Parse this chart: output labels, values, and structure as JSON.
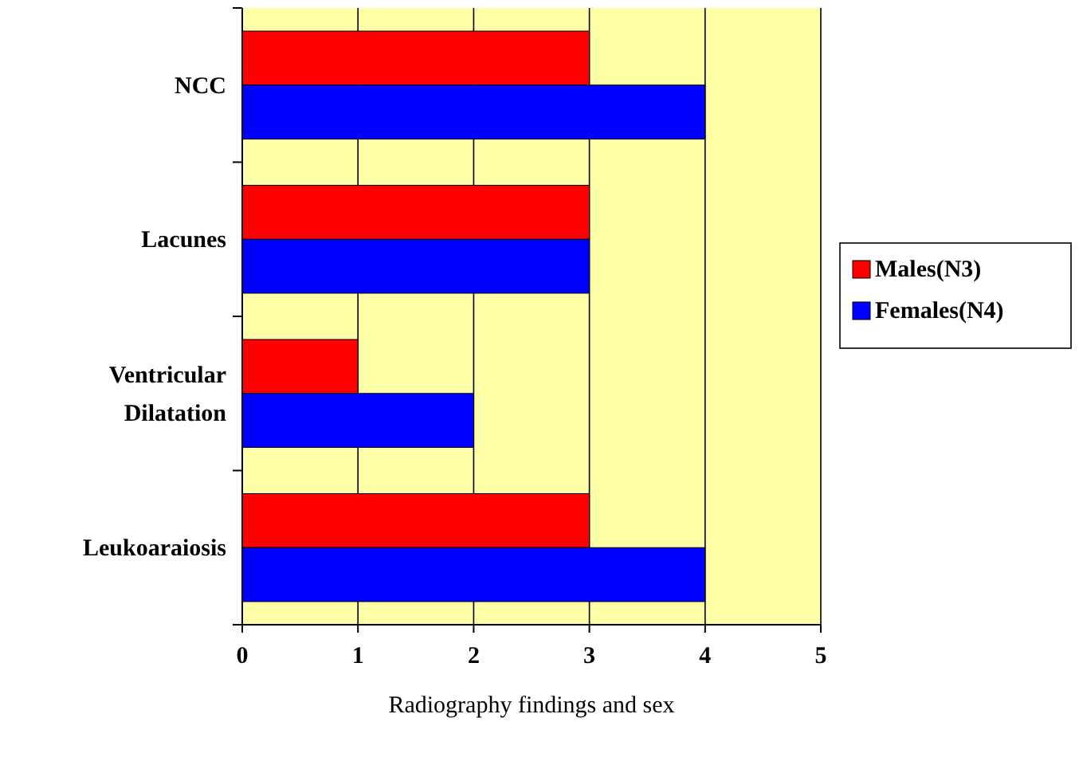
{
  "chart_data": {
    "type": "bar",
    "orientation": "horizontal",
    "xlabel": "Radiography findings and sex",
    "categories": [
      "NCC",
      "Lacunes",
      "Ventricular Dilatation",
      "Leukoaraiosis"
    ],
    "series": [
      {
        "name": "Males(N3)",
        "color": "#ff0000",
        "values": [
          3,
          3,
          1,
          3
        ]
      },
      {
        "name": "Females(N4)",
        "color": "#0000ff",
        "values": [
          4,
          3,
          2,
          4
        ]
      }
    ],
    "xlim": [
      0,
      5
    ],
    "xticks": [
      0,
      1,
      2,
      3,
      4,
      5
    ],
    "grid": "x",
    "legend": "right"
  }
}
